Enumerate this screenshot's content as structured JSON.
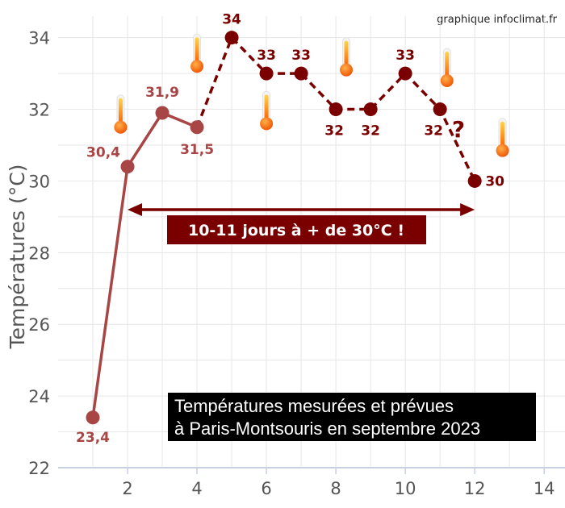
{
  "credit": "graphique infoclimat.fr",
  "chart_data": {
    "type": "line",
    "ylabel": "Températures (°C)",
    "xlabel": "",
    "xlim": [
      0,
      14.6
    ],
    "ylim": [
      22,
      34.6
    ],
    "xticks": [
      2,
      4,
      6,
      8,
      10,
      12,
      14
    ],
    "yticks": [
      22,
      24,
      26,
      28,
      30,
      32,
      34
    ],
    "grid": true,
    "series": [
      {
        "style": "solid",
        "color": "#a84545",
        "x": [
          1,
          2,
          3,
          4
        ],
        "y": [
          23.4,
          30.4,
          31.9,
          31.5
        ],
        "labels": [
          "23,4",
          "30,4",
          "31,9",
          "31,5"
        ],
        "label_color": "#a84545"
      },
      {
        "style": "dashed",
        "color": "#7a0000",
        "x": [
          4,
          5,
          6,
          7,
          8,
          9,
          10,
          11,
          12
        ],
        "y": [
          31.5,
          34,
          33,
          33,
          32,
          32,
          33,
          32,
          30
        ],
        "labels": [
          "",
          "34",
          "33",
          "33",
          "32",
          "32",
          "33",
          "32",
          "30"
        ],
        "label_color": "#7a0000"
      }
    ],
    "annotations": {
      "arrow": {
        "from_x": 2,
        "to_x": 12,
        "y": 29.2,
        "color": "#7a0000"
      },
      "banner": {
        "text": "10-11 jours à + de 30°C !",
        "color": "#7a0000"
      },
      "question_mark": "?",
      "info_box": {
        "line1": "Températures mesurées et prévues",
        "line2": "à Paris-Montsouris en septembre 2023"
      }
    },
    "thermometers": [
      {
        "x": 1.8,
        "y": 31.5
      },
      {
        "x": 4.0,
        "y": 33.2
      },
      {
        "x": 6.0,
        "y": 31.6
      },
      {
        "x": 8.3,
        "y": 33.1
      },
      {
        "x": 11.2,
        "y": 32.8
      },
      {
        "x": 12.8,
        "y": 30.85
      }
    ]
  }
}
